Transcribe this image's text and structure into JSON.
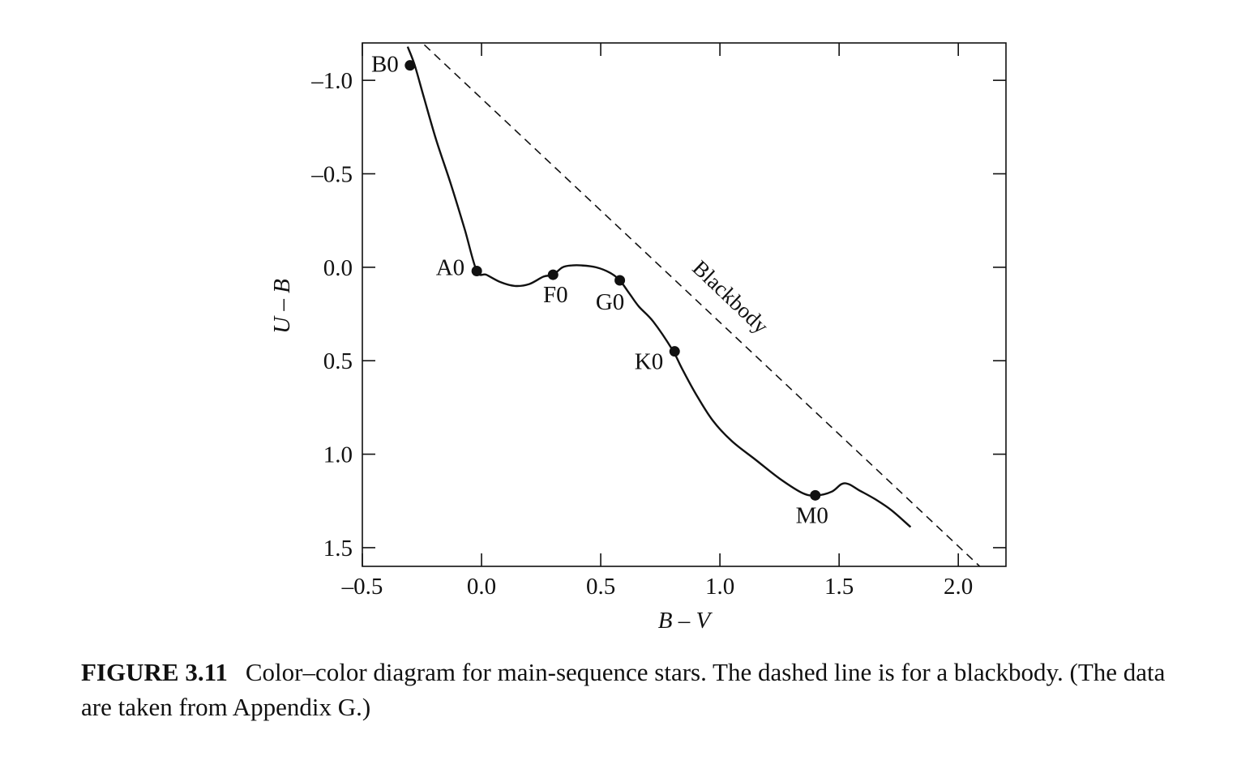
{
  "chart_data": {
    "type": "line",
    "xlabel": "B – V",
    "ylabel": "U – B",
    "xlim": [
      -0.5,
      2.2
    ],
    "ylim": [
      -1.2,
      1.6
    ],
    "y_inverted": true,
    "x_ticks": [
      -0.5,
      0.0,
      0.5,
      1.0,
      1.5,
      2.0
    ],
    "x_tick_labels": [
      "–0.5",
      "0.0",
      "0.5",
      "1.0",
      "1.5",
      "2.0"
    ],
    "y_ticks": [
      -1.0,
      -0.5,
      0.0,
      0.5,
      1.0,
      1.5
    ],
    "y_tick_labels": [
      "–1.0",
      "–0.5",
      "0.0",
      "0.5",
      "1.0",
      "1.5"
    ],
    "grid": false,
    "series": [
      {
        "style": "solid",
        "x": [
          -0.31,
          -0.28,
          -0.24,
          -0.19,
          -0.13,
          -0.07,
          -0.02,
          0.02,
          0.08,
          0.14,
          0.2,
          0.26,
          0.3,
          0.34,
          0.38,
          0.42,
          0.48,
          0.54,
          0.58,
          0.62,
          0.66,
          0.72,
          0.8,
          0.84,
          0.9,
          0.97,
          1.05,
          1.15,
          1.25,
          1.35,
          1.41,
          1.47,
          1.51,
          1.54,
          1.58,
          1.65,
          1.72,
          1.8
        ],
        "y": [
          -1.18,
          -1.08,
          -0.9,
          -0.68,
          -0.45,
          -0.2,
          0.02,
          0.04,
          0.08,
          0.1,
          0.09,
          0.05,
          0.04,
          0.0,
          -0.01,
          -0.01,
          0.0,
          0.03,
          0.07,
          0.14,
          0.21,
          0.29,
          0.44,
          0.54,
          0.68,
          0.82,
          0.93,
          1.03,
          1.13,
          1.21,
          1.22,
          1.2,
          1.16,
          1.16,
          1.19,
          1.24,
          1.3,
          1.39
        ]
      },
      {
        "name": "Blackbody",
        "style": "dashed",
        "x": [
          -0.24,
          2.09
        ],
        "y": [
          -1.19,
          1.6
        ]
      }
    ],
    "points": [
      {
        "label": "B0",
        "x": -0.3,
        "y": -1.08
      },
      {
        "label": "A0",
        "x": -0.02,
        "y": 0.02
      },
      {
        "label": "F0",
        "x": 0.3,
        "y": 0.04
      },
      {
        "label": "G0",
        "x": 0.58,
        "y": 0.07
      },
      {
        "label": "K0",
        "x": 0.81,
        "y": 0.45
      },
      {
        "label": "M0",
        "x": 1.4,
        "y": 1.22
      }
    ]
  },
  "caption": {
    "label": "FIGURE 3.11",
    "text": "Color–color diagram for main-sequence stars. The dashed line is for a blackbody. (The data are taken from Appendix G.)"
  }
}
